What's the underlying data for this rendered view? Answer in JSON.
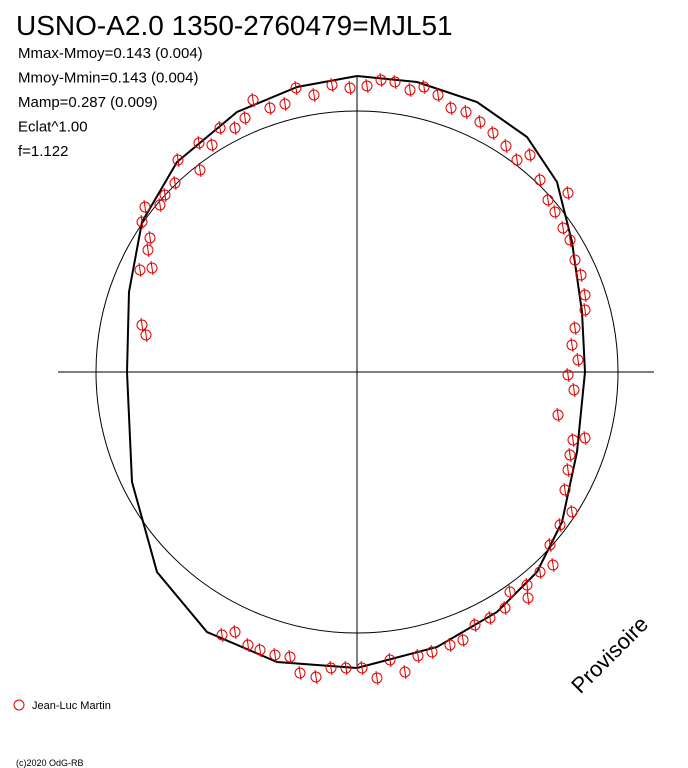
{
  "chart_data": {
    "type": "scatter",
    "title": "USNO-A2.0 1350-2760479=MJL51",
    "annotations": [
      "Mmax-Mmoy=0.143 (0.004)",
      "Mmoy-Mmin=0.143 (0.004)",
      "Mamp=0.287 (0.009)",
      "Eclat^1.00",
      "f=1.122"
    ],
    "watermark": "Provisoire",
    "footer": "(c)2020 OdG-RB",
    "xlim": [
      -299,
      297
    ],
    "ylim": [
      -296,
      296
    ],
    "series": [
      {
        "name": "Jean-Luc Martin",
        "color": "#e00000",
        "x": [
          -61,
          -43,
          -25,
          -7,
          10,
          24,
          38,
          53,
          67,
          81,
          94,
          109,
          123,
          136,
          149,
          160,
          173,
          183,
          191,
          211,
          198,
          206,
          213,
          218,
          224,
          228,
          228,
          218,
          215,
          221,
          211,
          217,
          201,
          216,
          228,
          213,
          211,
          208,
          215,
          203,
          193,
          196,
          183,
          170,
          171,
          153,
          148,
          133,
          118,
          106,
          93,
          75,
          61,
          48,
          33,
          20,
          5,
          -11,
          -26,
          -41,
          -57,
          -67,
          -82,
          -97,
          -109,
          -122,
          -135,
          -157,
          -179,
          -182,
          -192,
          -197,
          -212,
          -215,
          -207,
          -209,
          -205,
          -217,
          -215,
          -211,
          -158,
          -145,
          -137,
          -122,
          -112,
          -104,
          -87,
          -72
        ],
        "values": [
          284,
          277,
          287,
          284,
          286,
          292,
          290,
          282,
          285,
          277,
          264,
          260,
          250,
          239,
          226,
          212,
          217,
          192,
          172,
          179,
          160,
          144,
          132,
          112,
          97,
          77,
          62,
          44,
          27,
          12,
          -3,
          -18,
          -43,
          -68,
          -66,
          -83,
          -98,
          -118,
          -140,
          -153,
          -173,
          -193,
          -200,
          -213,
          -226,
          -220,
          -236,
          -246,
          -253,
          -268,
          -273,
          -280,
          -284,
          -300,
          -288,
          -306,
          -296,
          -296,
          -296,
          -305,
          -301,
          -285,
          -283,
          -278,
          -273,
          -260,
          -263,
          202,
          212,
          189,
          177,
          167,
          165,
          150,
          134,
          122,
          104,
          102,
          47,
          37,
          229,
          227,
          244,
          244,
          254,
          272,
          264,
          268
        ]
      }
    ],
    "curve": {
      "color": "#000000",
      "x": [
        0,
        60,
        120,
        170,
        200,
        215,
        225,
        228,
        220,
        205,
        180,
        140,
        80,
        0,
        -80,
        -150,
        -200,
        -225,
        -230,
        -228,
        -215,
        -180,
        -120,
        -60,
        0
      ],
      "values": [
        296,
        290,
        270,
        235,
        190,
        130,
        60,
        0,
        -80,
        -150,
        -200,
        -240,
        -275,
        -296,
        -290,
        -260,
        -200,
        -110,
        0,
        80,
        150,
        210,
        260,
        285,
        296
      ]
    }
  }
}
